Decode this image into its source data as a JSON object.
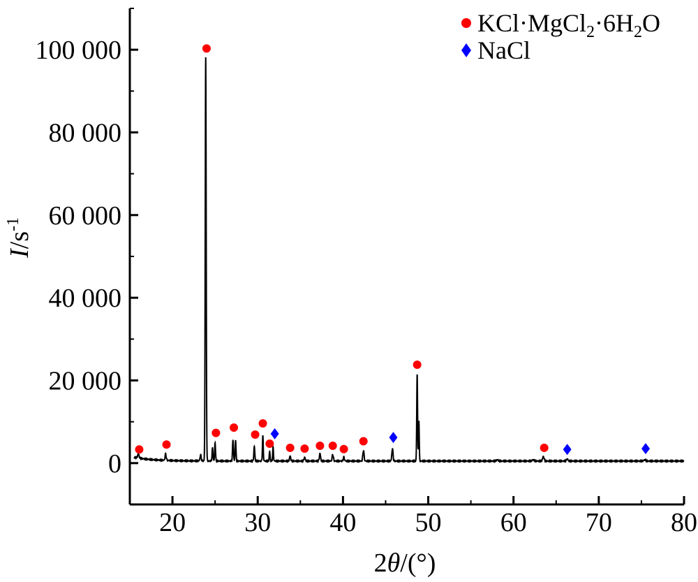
{
  "chart_data": {
    "type": "line",
    "xlabel_prefix": "2",
    "xlabel_var": "θ",
    "xlabel_suffix": "/(°)",
    "ylabel_var": "I",
    "ylabel_unit": "/s",
    "ylabel_exp": "-1",
    "xlim": [
      15,
      80
    ],
    "ylim": [
      -10000,
      110000
    ],
    "x_ticks": [
      20,
      30,
      40,
      50,
      60,
      70,
      80
    ],
    "x_tick_labels": [
      "20",
      "30",
      "40",
      "50",
      "60",
      "70",
      "80"
    ],
    "y_ticks": [
      0,
      20000,
      40000,
      60000,
      80000,
      100000
    ],
    "y_tick_labels": [
      "0",
      "20 000",
      "40 000",
      "60 000",
      "80 000",
      "100 000"
    ],
    "grid": false,
    "legend_position": "top-right",
    "legend": [
      {
        "marker": "circle",
        "color": "#ff0000",
        "label_main": "KCl·MgCl",
        "sub1": "2",
        "label_mid": "·6H",
        "sub2": "2",
        "label_end": "O"
      },
      {
        "marker": "diamond",
        "color": "#0000ff",
        "label": "NaCl"
      }
    ],
    "baseline": 500,
    "peaks": [
      {
        "x": 16.0,
        "h": 1000,
        "w": 0.12
      },
      {
        "x": 19.2,
        "h": 1500,
        "w": 0.1
      },
      {
        "x": 23.3,
        "h": 1400,
        "w": 0.1
      },
      {
        "x": 23.9,
        "h": 97500,
        "w": 0.08
      },
      {
        "x": 24.7,
        "h": 3000,
        "w": 0.08
      },
      {
        "x": 25.0,
        "h": 4500,
        "w": 0.07
      },
      {
        "x": 27.1,
        "h": 5000,
        "w": 0.08
      },
      {
        "x": 27.4,
        "h": 5200,
        "w": 0.07
      },
      {
        "x": 29.6,
        "h": 3500,
        "w": 0.08
      },
      {
        "x": 30.6,
        "h": 6000,
        "w": 0.07
      },
      {
        "x": 31.4,
        "h": 2300,
        "w": 0.07
      },
      {
        "x": 31.8,
        "h": 3200,
        "w": 0.07
      },
      {
        "x": 33.8,
        "h": 1200,
        "w": 0.1
      },
      {
        "x": 35.5,
        "h": 900,
        "w": 0.1
      },
      {
        "x": 37.3,
        "h": 1800,
        "w": 0.1
      },
      {
        "x": 38.8,
        "h": 1600,
        "w": 0.1
      },
      {
        "x": 40.1,
        "h": 900,
        "w": 0.1
      },
      {
        "x": 42.4,
        "h": 2600,
        "w": 0.1
      },
      {
        "x": 45.8,
        "h": 3000,
        "w": 0.1
      },
      {
        "x": 48.7,
        "h": 21000,
        "w": 0.07
      },
      {
        "x": 48.9,
        "h": 10000,
        "w": 0.06
      },
      {
        "x": 58.1,
        "h": 300,
        "w": 0.15
      },
      {
        "x": 62.3,
        "h": 300,
        "w": 0.15
      },
      {
        "x": 63.5,
        "h": 1100,
        "w": 0.12
      },
      {
        "x": 66.3,
        "h": 500,
        "w": 0.12
      },
      {
        "x": 75.4,
        "h": 300,
        "w": 0.15
      }
    ],
    "markers": [
      {
        "type": "circle",
        "x": 16.1,
        "y": 3300
      },
      {
        "type": "circle",
        "x": 19.3,
        "y": 4500
      },
      {
        "type": "circle",
        "x": 24.0,
        "y": 100300
      },
      {
        "type": "circle",
        "x": 25.1,
        "y": 7300
      },
      {
        "type": "circle",
        "x": 27.2,
        "y": 8600
      },
      {
        "type": "circle",
        "x": 29.7,
        "y": 6900
      },
      {
        "type": "circle",
        "x": 30.6,
        "y": 9600
      },
      {
        "type": "circle",
        "x": 31.4,
        "y": 4700
      },
      {
        "type": "circle",
        "x": 33.8,
        "y": 3700
      },
      {
        "type": "circle",
        "x": 35.5,
        "y": 3500
      },
      {
        "type": "circle",
        "x": 37.3,
        "y": 4200
      },
      {
        "type": "circle",
        "x": 38.8,
        "y": 4200
      },
      {
        "type": "circle",
        "x": 40.1,
        "y": 3400
      },
      {
        "type": "circle",
        "x": 42.4,
        "y": 5300
      },
      {
        "type": "circle",
        "x": 48.7,
        "y": 23800
      },
      {
        "type": "circle",
        "x": 63.6,
        "y": 3700
      },
      {
        "type": "diamond",
        "x": 32.0,
        "y": 7100
      },
      {
        "type": "diamond",
        "x": 45.9,
        "y": 6200
      },
      {
        "type": "diamond",
        "x": 66.3,
        "y": 3300
      },
      {
        "type": "diamond",
        "x": 75.5,
        "y": 3500
      }
    ],
    "colors": {
      "line": "#000000",
      "circle": "#ff0000",
      "diamond": "#0000ff"
    }
  }
}
